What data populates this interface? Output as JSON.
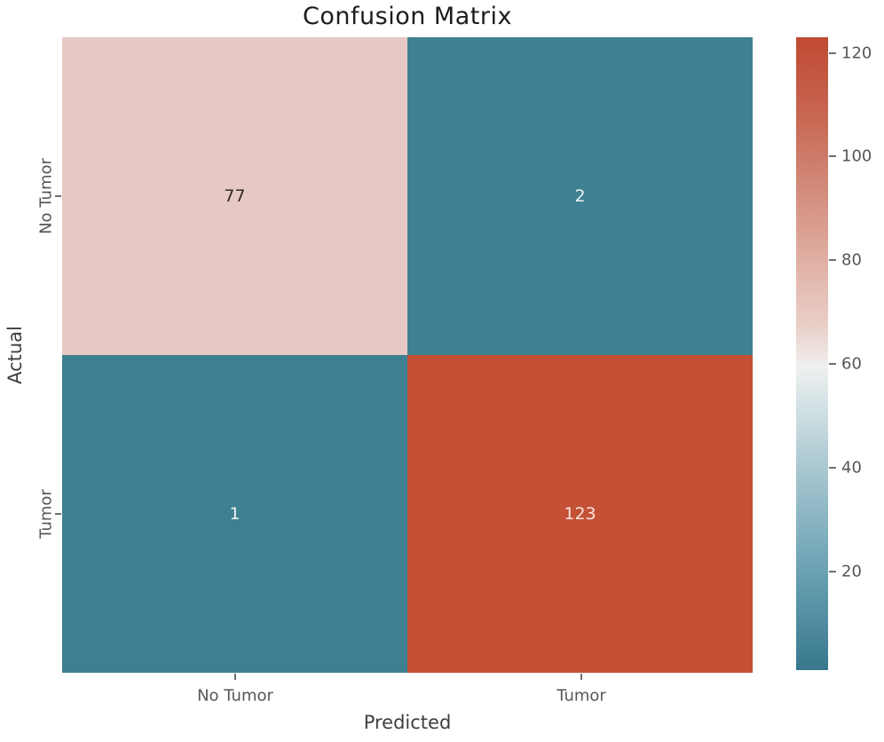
{
  "figure": {
    "background": "#ffffff"
  },
  "chart_data": {
    "type": "heatmap",
    "title": "Confusion Matrix",
    "xlabel": "Predicted",
    "ylabel": "Actual",
    "x_categories": [
      "No Tumor",
      "Tumor"
    ],
    "y_categories": [
      "No Tumor",
      "Tumor"
    ],
    "matrix": [
      [
        77,
        2
      ],
      [
        1,
        123
      ]
    ],
    "cells": [
      {
        "actual": "No Tumor",
        "predicted": "No Tumor",
        "value": "77",
        "bg": "#e6c9c4",
        "fg": "#332926"
      },
      {
        "actual": "No Tumor",
        "predicted": "Tumor",
        "value": "2",
        "bg": "#3f8092",
        "fg": "#edf3f4"
      },
      {
        "actual": "Tumor",
        "predicted": "No Tumor",
        "value": "1",
        "bg": "#3e7f91",
        "fg": "#edf3f4"
      },
      {
        "actual": "Tumor",
        "predicted": "Tumor",
        "value": "123",
        "bg": "#c45036",
        "fg": "#f7e5dd"
      }
    ],
    "colorbar": {
      "vmin": 1,
      "vmax": 123,
      "ticks": [
        "120",
        "100",
        "80",
        "60",
        "40",
        "20"
      ],
      "tick_values": [
        120,
        100,
        80,
        60,
        40,
        20
      ],
      "gradient_stops": [
        {
          "pos": 0,
          "color": "#bf4a32"
        },
        {
          "pos": 10,
          "color": "#c6604b"
        },
        {
          "pos": 19,
          "color": "#cd7b68"
        },
        {
          "pos": 35,
          "color": "#dfaea2"
        },
        {
          "pos": 46,
          "color": "#ead0c9"
        },
        {
          "pos": 52,
          "color": "#eff0ef"
        },
        {
          "pos": 58,
          "color": "#d4e2e5"
        },
        {
          "pos": 69,
          "color": "#a5c5cf"
        },
        {
          "pos": 85,
          "color": "#68a0b2"
        },
        {
          "pos": 100,
          "color": "#38788d"
        }
      ]
    },
    "layout": {
      "grid": "off",
      "legend": "none",
      "colorbar_position": "right",
      "y_tick_rotation": 90
    },
    "text_colors": {
      "title": "#1c1c1c",
      "axis_label": "#3f3f3f",
      "tick_label": "#565656"
    }
  }
}
